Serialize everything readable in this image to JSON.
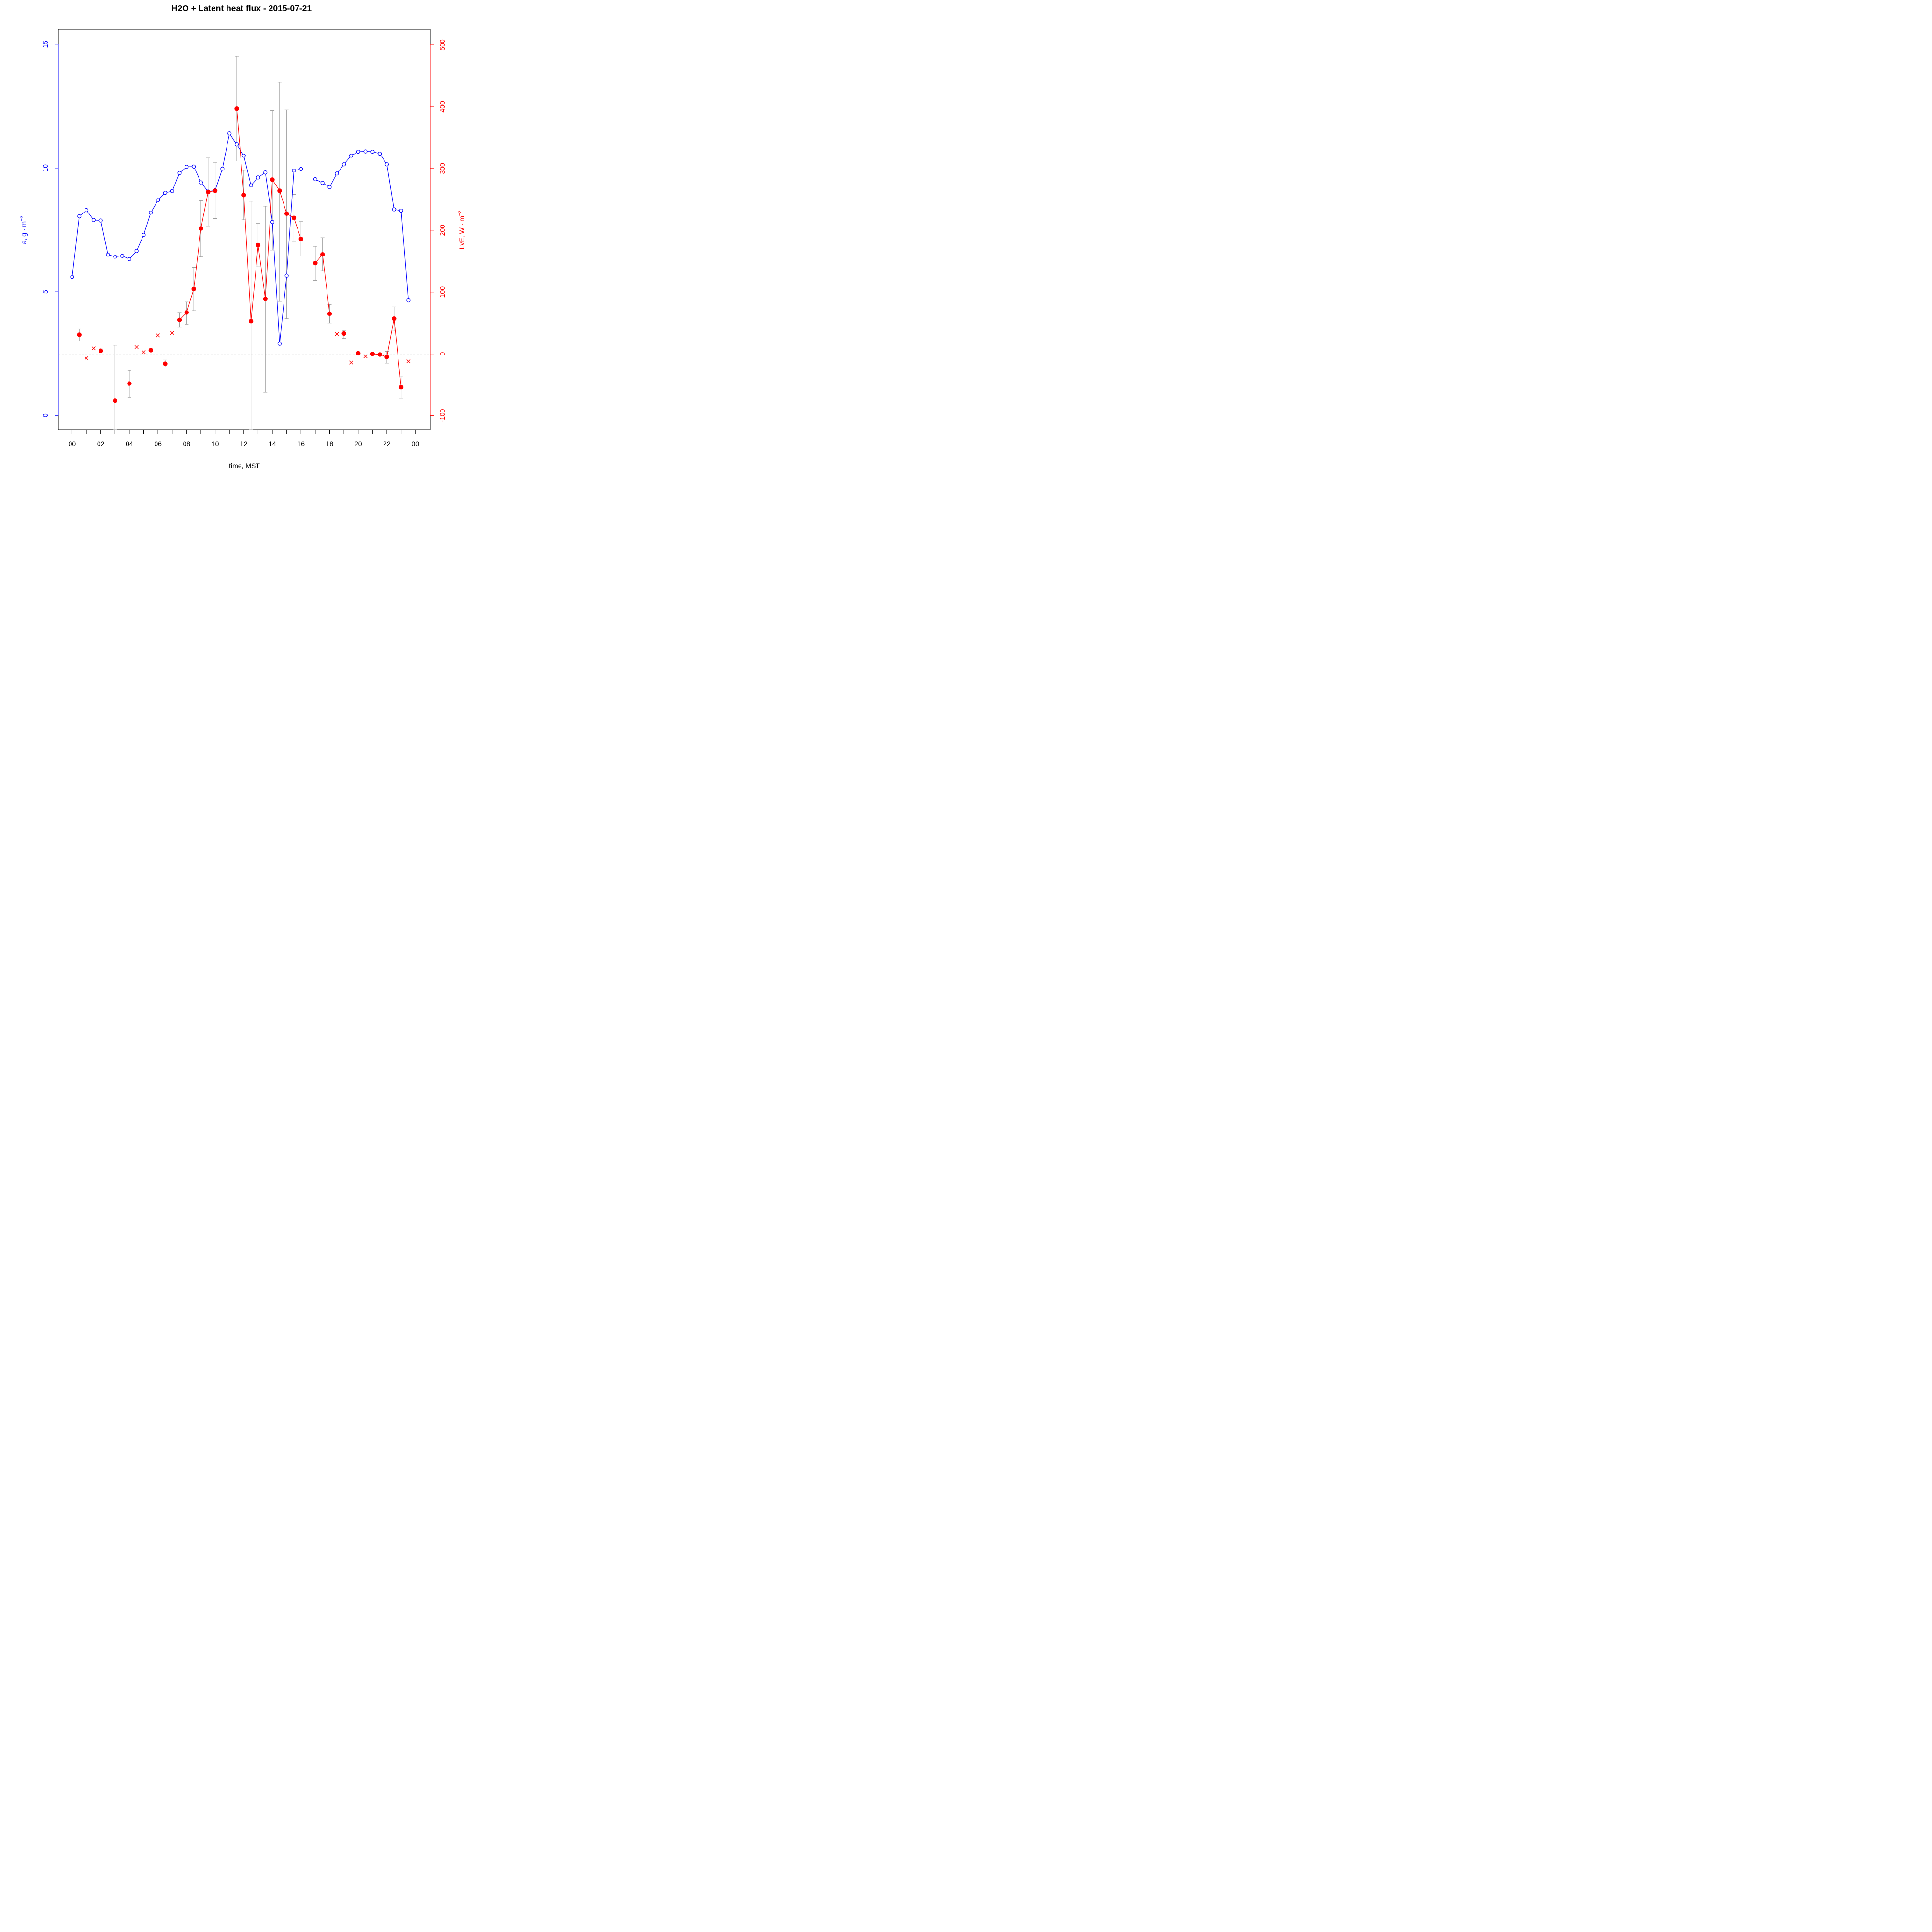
{
  "chart_data": {
    "type": "line",
    "title": "H2O + Latent heat flux -  2015-07-21",
    "xlabel": "time, MST",
    "x_unit": "hour",
    "xlim": [
      -0.96,
      25.04
    ],
    "x_ticks": [
      0,
      1,
      2,
      3,
      4,
      5,
      6,
      7,
      8,
      9,
      10,
      11,
      12,
      13,
      14,
      15,
      16,
      17,
      18,
      19,
      20,
      21,
      22,
      23,
      24
    ],
    "x_tick_labels": [
      {
        "x": 0,
        "label": "00"
      },
      {
        "x": 2,
        "label": "02"
      },
      {
        "x": 4,
        "label": "04"
      },
      {
        "x": 6,
        "label": "06"
      },
      {
        "x": 8,
        "label": "08"
      },
      {
        "x": 10,
        "label": "10"
      },
      {
        "x": 12,
        "label": "12"
      },
      {
        "x": 14,
        "label": "14"
      },
      {
        "x": 16,
        "label": "16"
      },
      {
        "x": 18,
        "label": "18"
      },
      {
        "x": 20,
        "label": "20"
      },
      {
        "x": 22,
        "label": "22"
      },
      {
        "x": 24,
        "label": "00"
      }
    ],
    "left_axis": {
      "label_main": "a, g · m",
      "label_sup": "−3",
      "ylim": [
        -0.58,
        15.6
      ],
      "ticks": [
        0,
        5,
        10,
        15
      ],
      "tick_labels": [
        "0",
        "5",
        "10",
        "15"
      ],
      "color": "#0000ff"
    },
    "right_axis": {
      "label_main": "LvE, W · m",
      "label_sup": "−2",
      "ylim": [
        -123,
        525
      ],
      "ticks": [
        -100,
        0,
        100,
        200,
        300,
        400,
        500
      ],
      "tick_labels": [
        "-100",
        "0",
        "100",
        "200",
        "300",
        "400",
        "500"
      ],
      "color": "#ff0000"
    },
    "grid": false,
    "reference_line": {
      "axis": "right",
      "y": 0,
      "style": "dashed",
      "color": "#aaaaaa"
    },
    "series": [
      {
        "axis": "left",
        "color": "#0000ff",
        "marker": "open-circle",
        "x": [
          0,
          0.5,
          1,
          1.5,
          2,
          2.5,
          3,
          3.5,
          4,
          4.5,
          5,
          5.5,
          6,
          6.5,
          7,
          7.5,
          8,
          8.5,
          9,
          9.5,
          10,
          10.5,
          11,
          11.5,
          12,
          12.5,
          13,
          13.5,
          14,
          14.5,
          15,
          15.5,
          16,
          16.5,
          17,
          17.5,
          18,
          18.5,
          19,
          19.5,
          20,
          20.5,
          21,
          21.5,
          22,
          22.5,
          23,
          23.5
        ],
        "y": [
          5.6,
          8.05,
          8.3,
          7.9,
          7.88,
          6.5,
          6.42,
          6.45,
          6.32,
          6.65,
          7.3,
          8.2,
          8.7,
          9.0,
          9.07,
          9.8,
          10.05,
          10.06,
          9.42,
          9.05,
          9.1,
          9.97,
          11.4,
          10.95,
          10.5,
          9.3,
          9.62,
          9.82,
          7.82,
          2.9,
          5.65,
          9.9,
          9.96,
          null,
          9.55,
          9.4,
          9.23,
          9.78,
          10.15,
          10.5,
          10.66,
          10.67,
          10.66,
          10.58,
          10.15,
          8.33,
          8.28,
          4.65
        ]
      },
      {
        "axis": "right",
        "color": "#ff0000",
        "marker": "filled-circle",
        "x": [
          0.5,
          1,
          1.5,
          2,
          2.5,
          3,
          3.5,
          4,
          4.5,
          5,
          5.5,
          6,
          6.5,
          7,
          7.5,
          8,
          8.5,
          9,
          9.5,
          10,
          10.5,
          11,
          11.5,
          12,
          12.5,
          13,
          13.5,
          14,
          14.5,
          15,
          15.5,
          16,
          16.5,
          17,
          17.5,
          18,
          18.5,
          19,
          19.5,
          20,
          20.5,
          21,
          21.5,
          22,
          22.5,
          23
        ],
        "y": [
          31,
          null,
          null,
          5,
          null,
          -76,
          null,
          -48,
          null,
          null,
          6,
          null,
          -16,
          null,
          55,
          67,
          105,
          203,
          262,
          264,
          null,
          null,
          397,
          257,
          53,
          176,
          89,
          282,
          264,
          227,
          220,
          186,
          null,
          147,
          161,
          65,
          null,
          33,
          null,
          1,
          null,
          0,
          -1,
          -5,
          57,
          -54
        ]
      },
      {
        "axis": "right",
        "color": "#ff0000",
        "marker": "cross",
        "x": [
          1,
          1.5,
          4.5,
          5,
          6,
          7,
          18.5,
          19.5,
          20.5,
          23.5
        ],
        "y": [
          -7,
          9,
          11,
          3,
          30,
          34,
          32,
          -14,
          -4,
          -12
        ]
      }
    ],
    "error_bars": {
      "axis": "right",
      "color": "#999999",
      "items": [
        {
          "x": 0.5,
          "lo": 21,
          "hi": 40
        },
        {
          "x": 2,
          "lo": 3,
          "hi": 8
        },
        {
          "x": 3,
          "lo": -123,
          "hi": 14
        },
        {
          "x": 4,
          "lo": -70,
          "hi": -27
        },
        {
          "x": 6.5,
          "lo": -21,
          "hi": -10
        },
        {
          "x": 7.5,
          "lo": 43,
          "hi": 67
        },
        {
          "x": 8,
          "lo": 48,
          "hi": 84
        },
        {
          "x": 8.5,
          "lo": 70,
          "hi": 140
        },
        {
          "x": 9,
          "lo": 157,
          "hi": 248
        },
        {
          "x": 9.5,
          "lo": 207,
          "hi": 317
        },
        {
          "x": 10,
          "lo": 219,
          "hi": 310
        },
        {
          "x": 11.5,
          "lo": 312,
          "hi": 482
        },
        {
          "x": 12,
          "lo": 217,
          "hi": 297
        },
        {
          "x": 12.5,
          "lo": -123,
          "hi": 247
        },
        {
          "x": 13,
          "lo": 141,
          "hi": 211
        },
        {
          "x": 13.5,
          "lo": -62,
          "hi": 239
        },
        {
          "x": 14,
          "lo": 168,
          "hi": 394
        },
        {
          "x": 14.5,
          "lo": 85,
          "hi": 440
        },
        {
          "x": 15,
          "lo": 57,
          "hi": 395
        },
        {
          "x": 15.5,
          "lo": 182,
          "hi": 258
        },
        {
          "x": 16,
          "lo": 158,
          "hi": 214
        },
        {
          "x": 17,
          "lo": 119,
          "hi": 174
        },
        {
          "x": 17.5,
          "lo": 134,
          "hi": 188
        },
        {
          "x": 18,
          "lo": 50,
          "hi": 80
        },
        {
          "x": 19,
          "lo": 25,
          "hi": 38
        },
        {
          "x": 22,
          "lo": -15,
          "hi": 4
        },
        {
          "x": 22.5,
          "lo": 37,
          "hi": 76
        },
        {
          "x": 23,
          "lo": -72,
          "hi": -36
        }
      ]
    }
  }
}
